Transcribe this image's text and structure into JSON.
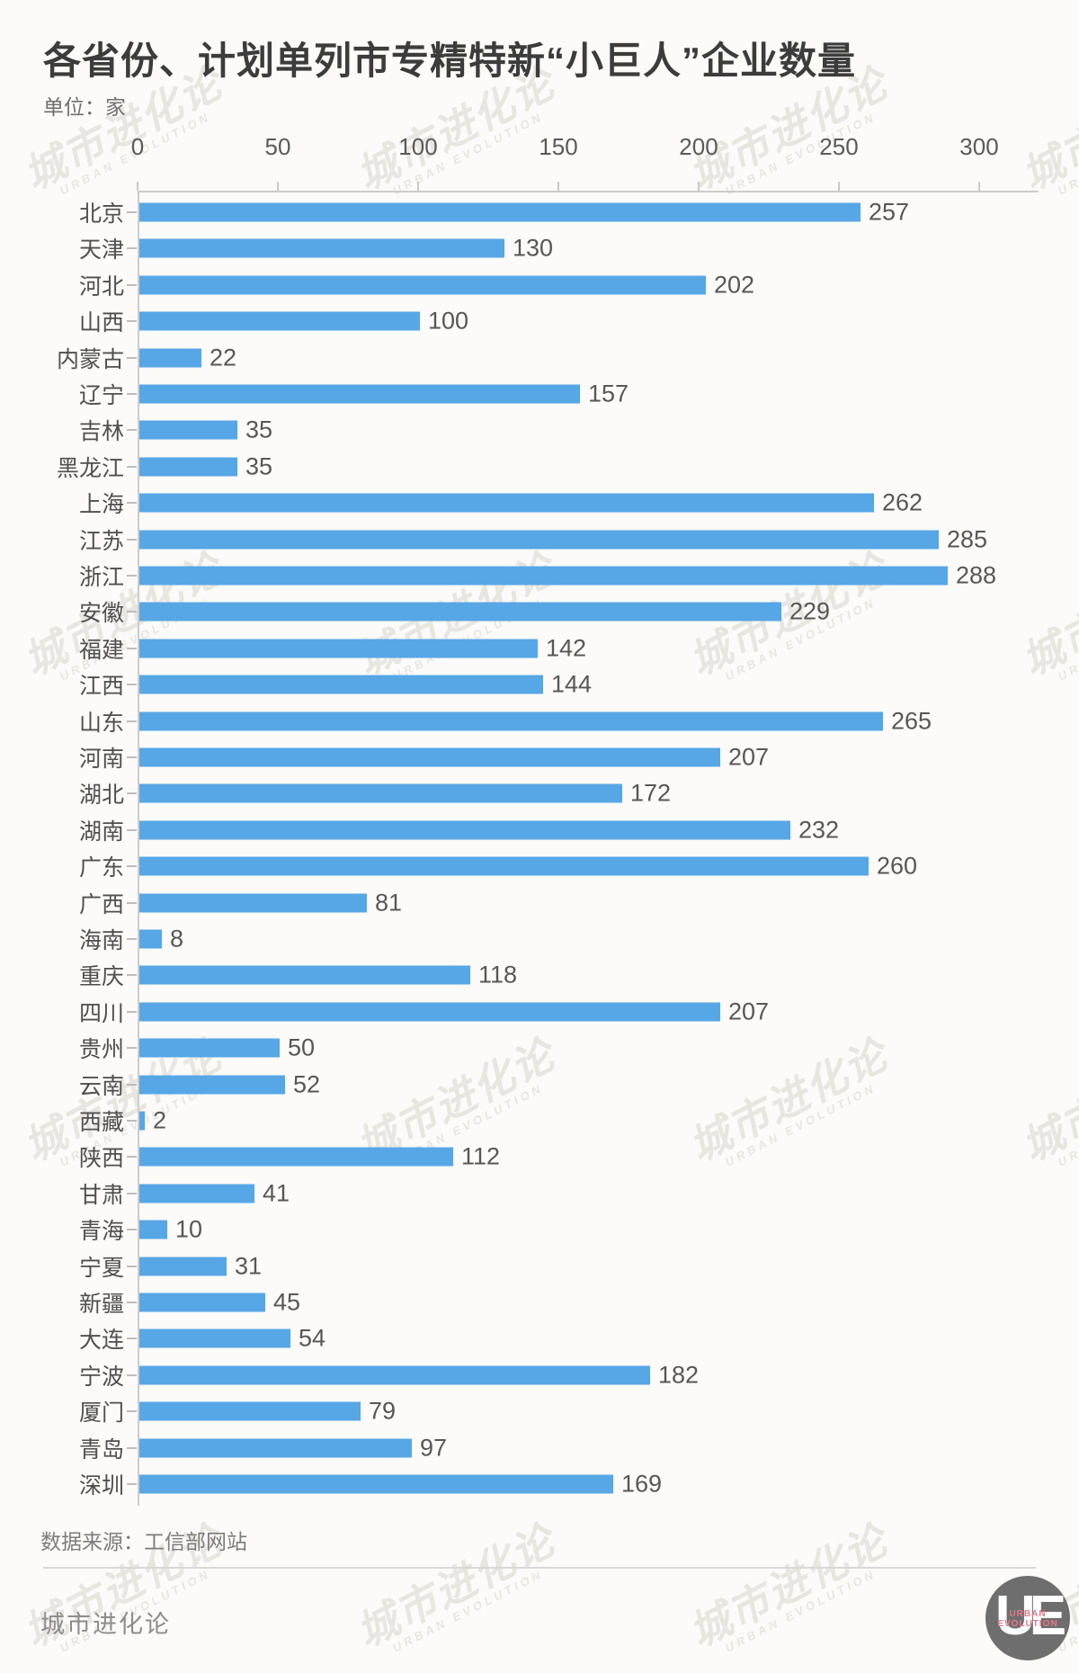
{
  "header": {
    "title": "各省份、计划单列市专精特新“小巨人”企业数量",
    "unit_label": "单位：家"
  },
  "chart_data": {
    "type": "bar",
    "orientation": "horizontal",
    "title": "各省份、计划单列市专精特新“小巨人”企业数量",
    "unit": "家",
    "xlim": [
      0,
      300
    ],
    "x_ticks": [
      0,
      50,
      100,
      150,
      200,
      250,
      300
    ],
    "grid": false,
    "bar_color": "#57a6e6",
    "categories": [
      "北京",
      "天津",
      "河北",
      "山西",
      "内蒙古",
      "辽宁",
      "吉林",
      "黑龙江",
      "上海",
      "江苏",
      "浙江",
      "安徽",
      "福建",
      "江西",
      "山东",
      "河南",
      "湖北",
      "湖南",
      "广东",
      "广西",
      "海南",
      "重庆",
      "四川",
      "贵州",
      "云南",
      "西藏",
      "陕西",
      "甘肃",
      "青海",
      "宁夏",
      "新疆",
      "大连",
      "宁波",
      "厦门",
      "青岛",
      "深圳"
    ],
    "values": [
      257,
      130,
      202,
      100,
      22,
      157,
      35,
      35,
      262,
      285,
      288,
      229,
      142,
      144,
      265,
      207,
      172,
      232,
      260,
      81,
      8,
      118,
      207,
      50,
      52,
      2,
      112,
      41,
      10,
      31,
      45,
      54,
      182,
      79,
      97,
      169
    ]
  },
  "footer": {
    "source": "数据来源：工信部网站",
    "brand": "城市进化论"
  },
  "watermark": {
    "line1": "城市进化论",
    "line2": "URBAN EVOLUTION"
  },
  "logo": {
    "monogram": "UE",
    "sub_line1": "URBAN",
    "sub_line2": "EVOLUTION"
  },
  "colors": {
    "bar": "#57a6e6",
    "axis": "#cccccc",
    "title_text": "#3c3c3c",
    "label_text": "#4f4f4f",
    "value_text": "#575757",
    "background": "#fcfbf9"
  }
}
